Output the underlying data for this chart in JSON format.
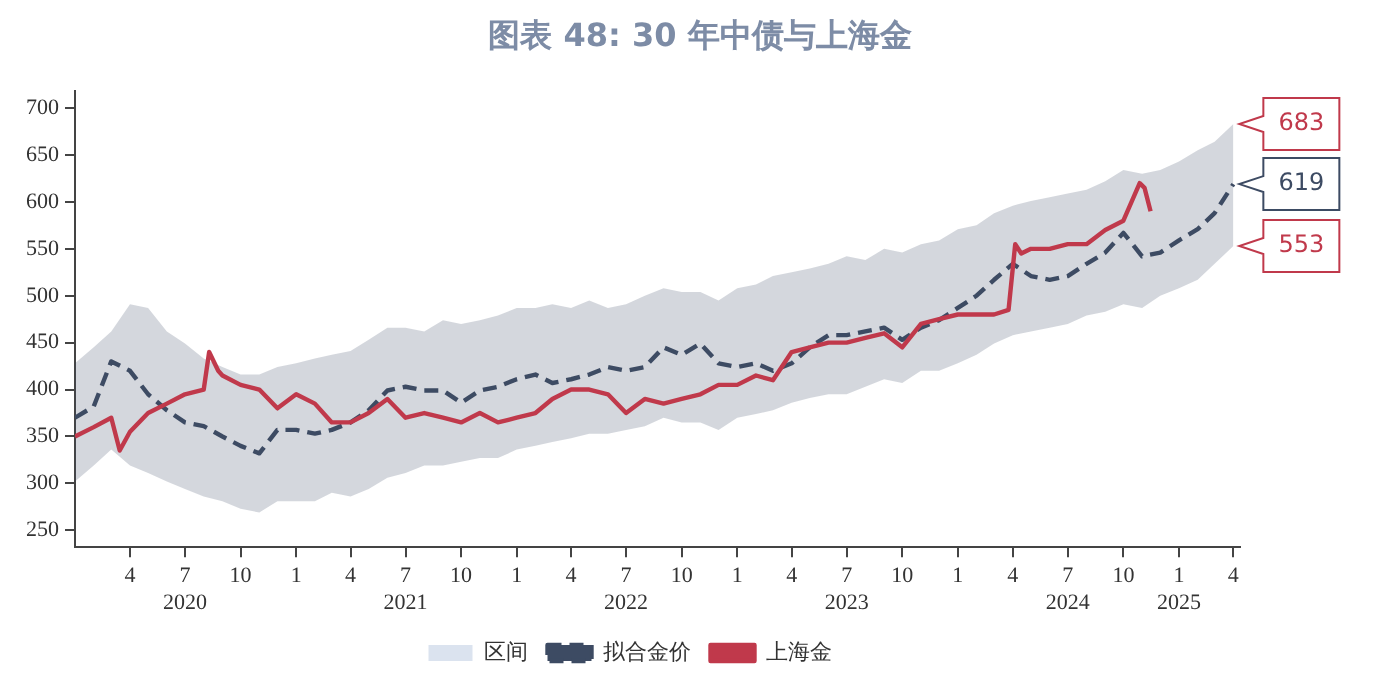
{
  "chart_data": {
    "type": "line",
    "title": "图表 48: 30 年中债与上海金",
    "x": [
      "2020-01",
      "2020-02",
      "2020-03",
      "2020-04",
      "2020-05",
      "2020-06",
      "2020-07",
      "2020-08",
      "2020-09",
      "2020-10",
      "2020-11",
      "2020-12",
      "2021-01",
      "2021-02",
      "2021-03",
      "2021-04",
      "2021-05",
      "2021-06",
      "2021-07",
      "2021-08",
      "2021-09",
      "2021-10",
      "2021-11",
      "2021-12",
      "2022-01",
      "2022-02",
      "2022-03",
      "2022-04",
      "2022-05",
      "2022-06",
      "2022-07",
      "2022-08",
      "2022-09",
      "2022-10",
      "2022-11",
      "2022-12",
      "2023-01",
      "2023-02",
      "2023-03",
      "2023-04",
      "2023-05",
      "2023-06",
      "2023-07",
      "2023-08",
      "2023-09",
      "2023-10",
      "2023-11",
      "2023-12",
      "2024-01",
      "2024-02",
      "2024-03",
      "2024-04",
      "2024-05",
      "2024-06",
      "2024-07",
      "2024-08",
      "2024-09",
      "2024-10",
      "2024-11",
      "2024-12",
      "2025-01",
      "2025-02",
      "2025-03",
      "2025-04"
    ],
    "series": [
      {
        "name": "区间",
        "type": "area",
        "color": "#dbe3ef",
        "values": [
          null,
          null,
          null,
          null,
          null,
          null,
          null,
          null,
          null,
          null,
          null,
          null,
          null,
          null,
          null,
          null,
          null,
          null,
          null,
          null,
          null,
          null,
          null,
          null,
          null,
          null,
          null,
          null,
          null,
          null,
          null,
          null,
          null,
          null,
          null,
          null,
          null,
          null,
          null,
          null,
          null,
          null,
          null,
          null,
          null,
          null,
          null,
          null,
          null,
          null,
          null,
          null,
          null,
          null,
          null,
          null,
          null,
          null,
          null,
          null,
          null,
          null,
          null,
          null
        ]
      },
      {
        "name": "拟合金价",
        "color": "#3d4b63",
        "line_style": "dashed",
        "values": [
          370,
          382,
          430,
          420,
          395,
          378,
          365,
          361,
          350,
          340,
          332,
          357,
          357,
          353,
          357,
          365,
          378,
          399,
          403,
          399,
          399,
          386,
          399,
          403,
          411,
          416,
          407,
          411,
          416,
          424,
          420,
          424,
          445,
          437,
          449,
          428,
          424,
          428,
          420,
          428,
          445,
          458,
          458,
          462,
          466,
          453,
          466,
          474,
          487,
          500,
          517,
          534,
          521,
          517,
          521,
          534,
          546,
          567,
          542,
          546,
          559,
          571,
          588,
          619
        ],
        "upper": [
          428,
          445,
          462,
          491,
          487,
          462,
          449,
          433,
          424,
          416,
          416,
          424,
          428,
          433,
          437,
          441,
          453,
          466,
          466,
          462,
          474,
          470,
          474,
          479,
          487,
          487,
          491,
          487,
          495,
          487,
          491,
          500,
          508,
          504,
          504,
          495,
          508,
          512,
          521,
          525,
          529,
          534,
          542,
          538,
          550,
          546,
          555,
          559,
          571,
          575,
          588,
          596,
          601,
          605,
          609,
          613,
          622,
          634,
          630,
          634,
          643,
          655,
          664,
          683
        ],
        "lower": [
          302,
          319,
          336,
          319,
          311,
          302,
          294,
          286,
          281,
          273,
          269,
          281,
          281,
          281,
          290,
          286,
          294,
          306,
          311,
          319,
          319,
          323,
          327,
          327,
          336,
          340,
          344,
          348,
          353,
          353,
          357,
          361,
          370,
          365,
          365,
          357,
          370,
          374,
          378,
          386,
          391,
          395,
          395,
          403,
          411,
          407,
          420,
          420,
          428,
          437,
          449,
          458,
          462,
          466,
          470,
          479,
          483,
          491,
          487,
          500,
          508,
          517,
          534,
          553
        ]
      },
      {
        "name": "上海金",
        "color": "#c0394b",
        "line_style": "solid",
        "x": [
          "2020-01-01",
          "2020-02-01",
          "2020-03-01",
          "2020-03-15",
          "2020-04-01",
          "2020-05-01",
          "2020-06-01",
          "2020-07-01",
          "2020-08-01",
          "2020-08-10",
          "2020-08-25",
          "2020-09-01",
          "2020-10-01",
          "2020-11-01",
          "2020-12-01",
          "2021-01-01",
          "2021-02-01",
          "2021-03-01",
          "2021-04-01",
          "2021-05-01",
          "2021-06-01",
          "2021-07-01",
          "2021-08-01",
          "2021-09-01",
          "2021-10-01",
          "2021-11-01",
          "2021-12-01",
          "2022-01-01",
          "2022-02-01",
          "2022-03-01",
          "2022-04-01",
          "2022-05-01",
          "2022-06-01",
          "2022-07-01",
          "2022-08-01",
          "2022-09-01",
          "2022-10-01",
          "2022-11-01",
          "2022-12-01",
          "2023-01-01",
          "2023-02-01",
          "2023-03-01",
          "2023-04-01",
          "2023-05-01",
          "2023-06-01",
          "2023-07-01",
          "2023-08-01",
          "2023-09-01",
          "2023-10-01",
          "2023-11-01",
          "2023-12-01",
          "2024-01-01",
          "2024-02-01",
          "2024-03-01",
          "2024-03-25",
          "2024-04-05",
          "2024-04-15",
          "2024-05-01",
          "2024-06-01",
          "2024-07-01",
          "2024-08-01",
          "2024-09-01",
          "2024-10-01",
          "2024-10-28",
          "2024-11-05",
          "2024-11-15"
        ],
        "values": [
          350,
          360,
          370,
          335,
          355,
          375,
          385,
          395,
          400,
          440,
          420,
          415,
          405,
          400,
          380,
          395,
          385,
          365,
          365,
          375,
          390,
          370,
          375,
          370,
          365,
          375,
          365,
          370,
          375,
          390,
          400,
          400,
          395,
          375,
          390,
          385,
          390,
          395,
          405,
          405,
          415,
          410,
          440,
          445,
          450,
          450,
          455,
          460,
          445,
          470,
          475,
          480,
          480,
          480,
          485,
          555,
          545,
          550,
          550,
          555,
          555,
          570,
          580,
          620,
          615,
          590
        ]
      }
    ],
    "xlim": [
      "2020-01",
      "2025-04-12"
    ],
    "xticks": [
      {
        "value": "2020-04",
        "label": "4"
      },
      {
        "value": "2020-07",
        "label": "7\n2020"
      },
      {
        "value": "2020-10",
        "label": "10"
      },
      {
        "value": "2021-01",
        "label": "1"
      },
      {
        "value": "2021-04",
        "label": "4"
      },
      {
        "value": "2021-07",
        "label": "7\n2021"
      },
      {
        "value": "2021-10",
        "label": "10"
      },
      {
        "value": "2022-01",
        "label": "1"
      },
      {
        "value": "2022-04",
        "label": "4"
      },
      {
        "value": "2022-07",
        "label": "7\n2022"
      },
      {
        "value": "2022-10",
        "label": "10"
      },
      {
        "value": "2023-01",
        "label": "1"
      },
      {
        "value": "2023-04",
        "label": "4"
      },
      {
        "value": "2023-07",
        "label": "7\n2023"
      },
      {
        "value": "2023-10",
        "label": "10"
      },
      {
        "value": "2024-01",
        "label": "1"
      },
      {
        "value": "2024-04",
        "label": "4"
      },
      {
        "value": "2024-07",
        "label": "7\n2024"
      },
      {
        "value": "2024-10",
        "label": "10"
      },
      {
        "value": "2025-01",
        "label": "1\n2025"
      },
      {
        "value": "2025-04",
        "label": "4"
      }
    ],
    "ylim": [
      232,
      718
    ],
    "yticks": [
      250,
      300,
      350,
      400,
      450,
      500,
      550,
      600,
      650,
      700
    ],
    "marker": "none",
    "grid": false,
    "legend": "bottom",
    "annotations": [
      {
        "text": "683",
        "x": "2025-04",
        "y": 683
      },
      {
        "text": "619",
        "x": "2025-04",
        "y": 619
      },
      {
        "text": "553",
        "x": "2025-04",
        "y": 553
      }
    ]
  }
}
